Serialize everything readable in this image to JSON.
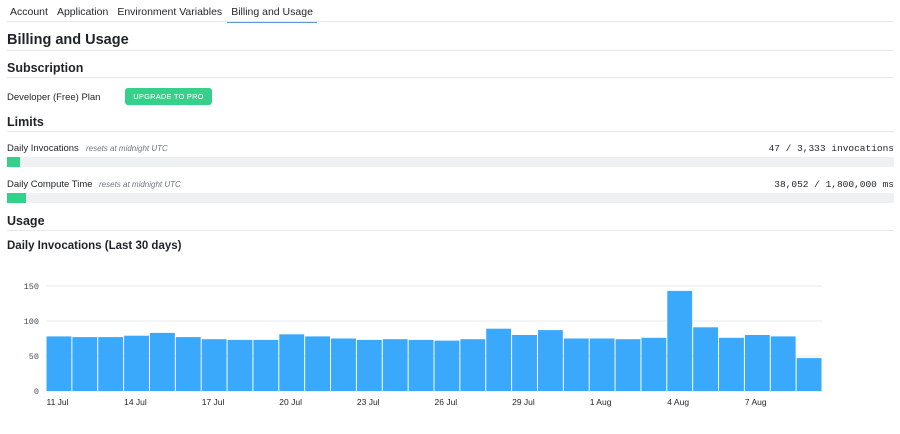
{
  "tabs": [
    {
      "label": "Account",
      "active": false
    },
    {
      "label": "Application",
      "active": false
    },
    {
      "label": "Environment Variables",
      "active": false
    },
    {
      "label": "Billing and Usage",
      "active": true
    }
  ],
  "page_title": "Billing and Usage",
  "subscription": {
    "heading": "Subscription",
    "plan": "Developer (Free) Plan",
    "upgrade_label": "UPGRADE TO PRO"
  },
  "limits": {
    "heading": "Limits",
    "items": [
      {
        "label": "Daily Invocations",
        "note": "resets at midnight UTC",
        "value": "47 / 3,333 invocations",
        "fraction": 0.0141
      },
      {
        "label": "Daily Compute Time",
        "note": "resets at midnight UTC",
        "value": "38,052 / 1,800,000 ms",
        "fraction": 0.0211
      }
    ]
  },
  "usage": {
    "heading": "Usage",
    "chart_title": "Daily Invocations (Last 30 days)"
  },
  "colors": {
    "accent_green": "#35d08a",
    "bar_blue": "#3aa8fb",
    "track_gray": "#eef0f2"
  },
  "chart_data": {
    "type": "bar",
    "title": "Daily Invocations (Last 30 days)",
    "xlabel": "",
    "ylabel": "",
    "ylim": [
      0,
      150
    ],
    "yticks": [
      0,
      50,
      100,
      150
    ],
    "xtick_labels": [
      "11 Jul",
      "14 Jul",
      "17 Jul",
      "20 Jul",
      "23 Jul",
      "26 Jul",
      "29 Jul",
      "1 Aug",
      "4 Aug",
      "7 Aug"
    ],
    "categories": [
      "11 Jul",
      "12 Jul",
      "13 Jul",
      "14 Jul",
      "15 Jul",
      "16 Jul",
      "17 Jul",
      "18 Jul",
      "19 Jul",
      "20 Jul",
      "21 Jul",
      "22 Jul",
      "23 Jul",
      "24 Jul",
      "25 Jul",
      "26 Jul",
      "27 Jul",
      "28 Jul",
      "29 Jul",
      "30 Jul",
      "31 Jul",
      "1 Aug",
      "2 Aug",
      "3 Aug",
      "4 Aug",
      "5 Aug",
      "6 Aug",
      "7 Aug",
      "8 Aug",
      "9 Aug"
    ],
    "values": [
      78,
      77,
      77,
      79,
      83,
      77,
      74,
      73,
      73,
      81,
      78,
      75,
      73,
      74,
      73,
      72,
      74,
      89,
      80,
      87,
      75,
      75,
      74,
      76,
      143,
      91,
      76,
      80,
      78,
      47
    ],
    "grid": true,
    "legend": "none"
  }
}
